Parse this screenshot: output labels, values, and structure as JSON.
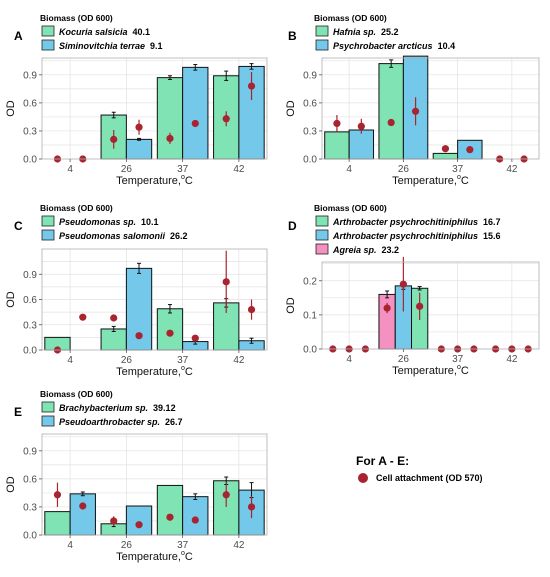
{
  "colors": {
    "green": "#7fe3b4",
    "blue": "#74c8ea",
    "pink": "#f591c0",
    "dot": "#a82430",
    "grid": "#e2e2e2",
    "frame": "#b0b0b0"
  },
  "common_legend": {
    "title": "For A  - E:",
    "label": "Cell attachment (OD 570)"
  },
  "chart_data": [
    {
      "panel": "A",
      "type": "bar",
      "legend_title": "Biomass (OD 600)",
      "legend": [
        {
          "name": "Kocuria salsicia",
          "value": "40.1",
          "color": "green"
        },
        {
          "name": "Siminovitchia terrae",
          "value": "9.1",
          "color": "blue"
        }
      ],
      "categories": [
        "4",
        "26",
        "37",
        "42"
      ],
      "ylabel": "OD",
      "xlabel": "Temperature,",
      "xunit": "C",
      "ylim": [
        0,
        1.08
      ],
      "yticks": [
        "0.0",
        "0.3",
        "0.6",
        "0.9"
      ],
      "series": [
        {
          "color": "green",
          "values": [
            0,
            0.47,
            0.87,
            0.89
          ],
          "err": [
            0,
            0.03,
            0.02,
            0.05
          ]
        },
        {
          "color": "blue",
          "values": [
            0,
            0.21,
            0.98,
            0.99
          ],
          "err": [
            0,
            0.01,
            0.03,
            0.03
          ]
        }
      ],
      "points": [
        {
          "values": [
            0,
            0.21,
            0.22,
            0.43
          ],
          "err": [
            0,
            0.1,
            0.06,
            0.08
          ]
        },
        {
          "values": [
            0,
            0.34,
            0.38,
            0.78
          ],
          "err": [
            0,
            0.08,
            0.02,
            0.15
          ]
        }
      ]
    },
    {
      "panel": "B",
      "type": "bar",
      "legend_title": "Biomass (OD 600)",
      "legend": [
        {
          "name": "Hafnia sp.",
          "value": "25.2",
          "color": "green"
        },
        {
          "name": "Psychrobacter  arcticus",
          "value": "10.4",
          "color": "blue"
        }
      ],
      "categories": [
        "4",
        "26",
        "37",
        "42"
      ],
      "ylabel": "OD",
      "xlabel": "Temperature,",
      "xunit": "C",
      "ylim": [
        0,
        1.08
      ],
      "yticks": [
        "0.0",
        "0.3",
        "0.6",
        "0.9"
      ],
      "series": [
        {
          "color": "green",
          "values": [
            0.29,
            1.02,
            0.06,
            0
          ],
          "err": [
            0,
            0.04,
            0,
            0
          ]
        },
        {
          "color": "blue",
          "values": [
            0.31,
            1.1,
            0.2,
            0
          ],
          "err": [
            0,
            0,
            0,
            0
          ]
        }
      ],
      "points": [
        {
          "values": [
            0.38,
            0.39,
            0.11,
            0
          ],
          "err": [
            0.09,
            0,
            0,
            0
          ]
        },
        {
          "values": [
            0.35,
            0.51,
            0.1,
            0
          ],
          "err": [
            0.08,
            0.15,
            0,
            0
          ]
        }
      ]
    },
    {
      "panel": "C",
      "type": "bar",
      "legend_title": "Biomass (OD 600)",
      "legend": [
        {
          "name": "Pseudomonas sp.",
          "value": "10.1",
          "color": "green"
        },
        {
          "name": "Pseudomonas salomonii",
          "value": "26.2",
          "color": "blue"
        }
      ],
      "categories": [
        "4",
        "26",
        "37",
        "42"
      ],
      "ylabel": "OD",
      "xlabel": "Temperature,",
      "xunit": "C",
      "ylim": [
        0,
        1.2
      ],
      "yticks": [
        "0.0",
        "0.3",
        "0.6",
        "0.9"
      ],
      "series": [
        {
          "color": "green",
          "values": [
            0.15,
            0.25,
            0.49,
            0.56
          ],
          "err": [
            0,
            0.03,
            0.05,
            0.05
          ]
        },
        {
          "color": "blue",
          "values": [
            0,
            0.97,
            0.1,
            0.11
          ],
          "err": [
            0,
            0.06,
            0.03,
            0.03
          ]
        }
      ],
      "points": [
        {
          "values": [
            0,
            0.38,
            0.2,
            0.81
          ],
          "err": [
            0,
            0,
            0,
            0.37
          ]
        },
        {
          "values": [
            0.39,
            0.17,
            0.14,
            0.48
          ],
          "err": [
            0,
            0,
            0,
            0.12
          ]
        }
      ]
    },
    {
      "panel": "D",
      "type": "bar",
      "legend_title": "Biomass (OD 600)",
      "legend": [
        {
          "name": "Arthrobacter psychrochitiniphilus",
          "value": "16.7",
          "color": "green"
        },
        {
          "name": "Arthrobacter psychrochitiniphilus",
          "value": "15.6",
          "color": "blue"
        },
        {
          "name": "Agreia sp.",
          "value": "23.2",
          "color": "pink"
        }
      ],
      "categories": [
        "4",
        "26",
        "37",
        "42"
      ],
      "ylabel": "OD",
      "xlabel": "Temperature,",
      "xunit": "C",
      "ylim": [
        0,
        0.255
      ],
      "yticks": [
        "0.0",
        "0.1",
        "0.2"
      ],
      "series": [
        {
          "color": "pink",
          "values": [
            0,
            0.16,
            0,
            0
          ],
          "err": [
            0,
            0.01,
            0,
            0
          ]
        },
        {
          "color": "blue",
          "values": [
            0,
            0.185,
            0,
            0
          ],
          "err": [
            0,
            0.01,
            0,
            0
          ]
        },
        {
          "color": "green",
          "values": [
            0,
            0.178,
            0,
            0
          ],
          "err": [
            0,
            0.005,
            0,
            0
          ]
        }
      ],
      "points": [
        {
          "values": [
            0,
            0.12,
            0,
            0
          ],
          "err": [
            0,
            0.015,
            0,
            0
          ]
        },
        {
          "values": [
            0,
            0.19,
            0,
            0
          ],
          "err": [
            0,
            0.08,
            0,
            0
          ]
        },
        {
          "values": [
            0,
            0.125,
            0,
            0
          ],
          "err": [
            0,
            0.04,
            0,
            0
          ]
        }
      ]
    },
    {
      "panel": "E",
      "type": "bar",
      "legend_title": "Biomass (OD 600)",
      "legend": [
        {
          "name": "Brachybacterium sp.",
          "value": "39.12",
          "color": "green"
        },
        {
          "name": "Pseudoarthrobacter sp.",
          "value": "26.7",
          "color": "blue"
        }
      ],
      "categories": [
        "4",
        "26",
        "37",
        "42"
      ],
      "ylabel": "OD",
      "xlabel": "Temperature,",
      "xunit": "C",
      "ylim": [
        0,
        1.08
      ],
      "yticks": [
        "0.0",
        "0.3",
        "0.6",
        "0.9"
      ],
      "series": [
        {
          "color": "green",
          "values": [
            0.25,
            0.12,
            0.53,
            0.58
          ],
          "err": [
            0,
            0.03,
            0,
            0.04
          ]
        },
        {
          "color": "blue",
          "values": [
            0.44,
            0.31,
            0.41,
            0.48
          ],
          "err": [
            0.02,
            0,
            0.03,
            0.08
          ]
        }
      ],
      "points": [
        {
          "values": [
            0.43,
            0.15,
            0.19,
            0.43
          ],
          "err": [
            0.13,
            0.05,
            0,
            0.13
          ]
        },
        {
          "values": [
            0.31,
            0.11,
            0.16,
            0.3
          ],
          "err": [
            0.03,
            0,
            0,
            0.12
          ]
        }
      ]
    }
  ]
}
